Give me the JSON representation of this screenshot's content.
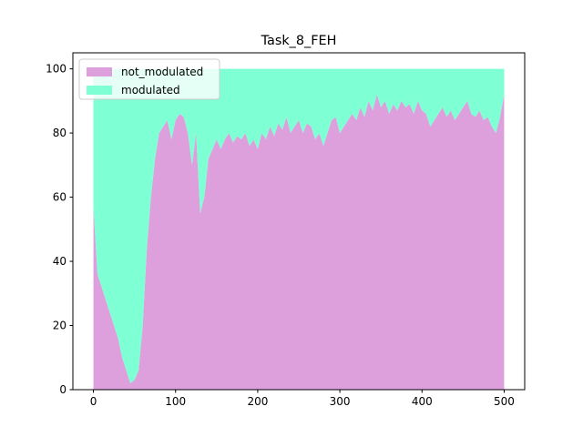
{
  "chart_data": {
    "type": "area",
    "title": "Task_8_FEH",
    "xlabel": "",
    "ylabel": "",
    "xlim": [
      -25,
      525
    ],
    "ylim": [
      0,
      105
    ],
    "xticks": [
      0,
      100,
      200,
      300,
      400,
      500
    ],
    "yticks": [
      0,
      20,
      40,
      60,
      80,
      100
    ],
    "grid": false,
    "legend": "top-left",
    "stacked": true,
    "colors": {
      "not_modulated": "#dda0dd",
      "modulated": "#7fffd4"
    },
    "x_step": 5,
    "x_start": 0,
    "series": [
      {
        "name": "not_modulated",
        "values": [
          57,
          36,
          32,
          28,
          24,
          20,
          16,
          10,
          6,
          2,
          3,
          6,
          20,
          44,
          60,
          72,
          80,
          82,
          84,
          78,
          84,
          86,
          85,
          80,
          70,
          80,
          55,
          60,
          72,
          75,
          78,
          75,
          78,
          80,
          77,
          79,
          78,
          80,
          76,
          78,
          75,
          80,
          78,
          82,
          79,
          83,
          81,
          85,
          80,
          82,
          84,
          80,
          83,
          82,
          78,
          80,
          76,
          80,
          84,
          85,
          80,
          82,
          84,
          86,
          84,
          88,
          85,
          90,
          87,
          92,
          88,
          90,
          86,
          89,
          87,
          90,
          88,
          89,
          86,
          90,
          87,
          86,
          82,
          84,
          86,
          88,
          85,
          87,
          84,
          86,
          88,
          90,
          86,
          85,
          87,
          84,
          85,
          82,
          80,
          85,
          92
        ]
      },
      {
        "name": "modulated",
        "values": [
          43,
          64,
          68,
          72,
          76,
          80,
          84,
          90,
          94,
          98,
          97,
          94,
          80,
          56,
          40,
          28,
          20,
          18,
          16,
          22,
          16,
          14,
          15,
          20,
          30,
          20,
          45,
          40,
          28,
          25,
          22,
          25,
          22,
          20,
          23,
          21,
          22,
          20,
          24,
          22,
          25,
          20,
          22,
          18,
          21,
          17,
          19,
          15,
          20,
          18,
          16,
          20,
          17,
          18,
          22,
          20,
          24,
          20,
          16,
          15,
          20,
          18,
          16,
          14,
          16,
          12,
          15,
          10,
          13,
          8,
          12,
          10,
          14,
          11,
          13,
          10,
          12,
          11,
          14,
          10,
          13,
          14,
          18,
          16,
          14,
          12,
          15,
          13,
          16,
          14,
          12,
          10,
          14,
          15,
          13,
          16,
          15,
          18,
          20,
          15,
          8
        ]
      }
    ]
  }
}
